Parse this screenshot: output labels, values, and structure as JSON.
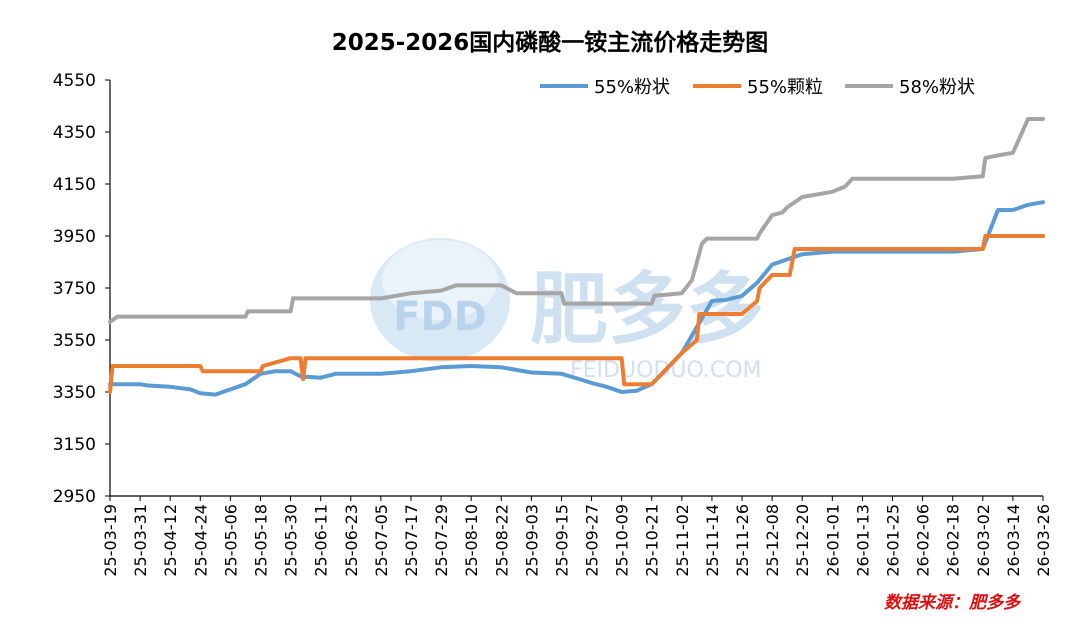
{
  "chart_data": {
    "type": "line",
    "title": "2025-2026国内磷酸一铵主流价格走势图",
    "source_note": "数据来源：肥多多",
    "watermark": {
      "brand": "FDD",
      "name": "肥多多",
      "site": "FEIDUODUO.COM"
    },
    "ylim": [
      2950,
      4550
    ],
    "yticks": [
      2950,
      3150,
      3350,
      3550,
      3750,
      3950,
      4150,
      4350,
      4550
    ],
    "xlabel": "",
    "ylabel": "",
    "grid": false,
    "legend_position": "top-right",
    "x_ticks": [
      "25-03-19",
      "25-03-31",
      "25-04-12",
      "25-04-24",
      "25-05-06",
      "25-05-18",
      "25-05-30",
      "25-06-11",
      "25-06-23",
      "25-07-05",
      "25-07-17",
      "25-07-29",
      "25-08-10",
      "25-08-22",
      "25-09-03",
      "25-09-15",
      "25-09-27",
      "25-10-09",
      "25-10-21",
      "25-11-02",
      "25-11-14",
      "25-11-26",
      "25-12-08",
      "25-12-20",
      "26-01-01",
      "26-01-13",
      "26-01-25",
      "26-02-06",
      "26-02-18",
      "26-03-02",
      "26-03-14",
      "26-03-26"
    ],
    "series": [
      {
        "name": "55%粉状",
        "color": "#5B9BD5",
        "points": [
          [
            "25-03-19",
            3380
          ],
          [
            "25-03-31",
            3380
          ],
          [
            "25-04-03",
            3375
          ],
          [
            "25-04-12",
            3370
          ],
          [
            "25-04-20",
            3360
          ],
          [
            "25-04-24",
            3345
          ],
          [
            "25-04-30",
            3340
          ],
          [
            "25-05-06",
            3360
          ],
          [
            "25-05-12",
            3380
          ],
          [
            "25-05-18",
            3420
          ],
          [
            "25-05-24",
            3430
          ],
          [
            "25-05-30",
            3430
          ],
          [
            "25-06-03",
            3410
          ],
          [
            "25-06-11",
            3405
          ],
          [
            "25-06-17",
            3420
          ],
          [
            "25-06-23",
            3420
          ],
          [
            "25-07-05",
            3420
          ],
          [
            "25-07-17",
            3430
          ],
          [
            "25-07-29",
            3445
          ],
          [
            "25-08-10",
            3450
          ],
          [
            "25-08-22",
            3445
          ],
          [
            "25-08-28",
            3435
          ],
          [
            "25-09-03",
            3425
          ],
          [
            "25-09-15",
            3420
          ],
          [
            "25-09-22",
            3400
          ],
          [
            "25-09-27",
            3385
          ],
          [
            "25-10-03",
            3370
          ],
          [
            "25-10-09",
            3350
          ],
          [
            "25-10-15",
            3355
          ],
          [
            "25-10-21",
            3380
          ],
          [
            "25-10-25",
            3420
          ],
          [
            "25-11-02",
            3500
          ],
          [
            "25-11-08",
            3600
          ],
          [
            "25-11-14",
            3700
          ],
          [
            "25-11-20",
            3705
          ],
          [
            "25-11-26",
            3720
          ],
          [
            "25-12-02",
            3770
          ],
          [
            "25-12-08",
            3840
          ],
          [
            "25-12-14",
            3860
          ],
          [
            "25-12-20",
            3880
          ],
          [
            "26-01-01",
            3890
          ],
          [
            "26-01-13",
            3890
          ],
          [
            "26-01-25",
            3890
          ],
          [
            "26-02-06",
            3890
          ],
          [
            "26-02-18",
            3890
          ],
          [
            "26-03-02",
            3900
          ],
          [
            "26-03-08",
            4050
          ],
          [
            "26-03-14",
            4050
          ],
          [
            "26-03-20",
            4070
          ],
          [
            "26-03-26",
            4080
          ]
        ]
      },
      {
        "name": "55%颗粒",
        "color": "#ED7D31",
        "points": [
          [
            "25-03-19",
            3350
          ],
          [
            "25-03-20",
            3450
          ],
          [
            "25-04-24",
            3450
          ],
          [
            "25-04-25",
            3430
          ],
          [
            "25-05-18",
            3430
          ],
          [
            "25-05-19",
            3450
          ],
          [
            "25-05-30",
            3480
          ],
          [
            "25-06-03",
            3480
          ],
          [
            "25-06-04",
            3400
          ],
          [
            "25-06-05",
            3480
          ],
          [
            "25-06-11",
            3480
          ],
          [
            "25-07-05",
            3480
          ],
          [
            "25-08-10",
            3480
          ],
          [
            "25-09-03",
            3480
          ],
          [
            "25-09-27",
            3480
          ],
          [
            "25-10-09",
            3480
          ],
          [
            "25-10-10",
            3380
          ],
          [
            "25-10-21",
            3380
          ],
          [
            "25-10-23",
            3400
          ],
          [
            "25-11-02",
            3500
          ],
          [
            "25-11-08",
            3550
          ],
          [
            "25-11-09",
            3650
          ],
          [
            "25-11-26",
            3650
          ],
          [
            "25-12-02",
            3700
          ],
          [
            "25-12-03",
            3750
          ],
          [
            "25-12-08",
            3800
          ],
          [
            "25-12-15",
            3800
          ],
          [
            "25-12-16",
            3850
          ],
          [
            "25-12-17",
            3900
          ],
          [
            "26-01-01",
            3900
          ],
          [
            "26-02-06",
            3900
          ],
          [
            "26-03-02",
            3900
          ],
          [
            "26-03-03",
            3950
          ],
          [
            "26-03-26",
            3950
          ]
        ]
      },
      {
        "name": "58%粉状",
        "color": "#A5A5A5",
        "points": [
          [
            "25-03-19",
            3620
          ],
          [
            "25-03-22",
            3640
          ],
          [
            "25-03-31",
            3640
          ],
          [
            "25-04-24",
            3640
          ],
          [
            "25-05-12",
            3640
          ],
          [
            "25-05-13",
            3660
          ],
          [
            "25-05-30",
            3660
          ],
          [
            "25-05-31",
            3710
          ],
          [
            "25-07-05",
            3710
          ],
          [
            "25-07-17",
            3730
          ],
          [
            "25-07-29",
            3740
          ],
          [
            "25-08-04",
            3760
          ],
          [
            "25-08-22",
            3760
          ],
          [
            "25-08-28",
            3730
          ],
          [
            "25-09-15",
            3730
          ],
          [
            "25-09-16",
            3690
          ],
          [
            "25-10-21",
            3690
          ],
          [
            "25-10-22",
            3720
          ],
          [
            "25-11-02",
            3730
          ],
          [
            "25-11-06",
            3780
          ],
          [
            "25-11-10",
            3920
          ],
          [
            "25-11-12",
            3940
          ],
          [
            "25-12-02",
            3940
          ],
          [
            "25-12-03",
            3960
          ],
          [
            "25-12-08",
            4030
          ],
          [
            "25-12-12",
            4040
          ],
          [
            "25-12-14",
            4060
          ],
          [
            "25-12-20",
            4100
          ],
          [
            "26-01-01",
            4120
          ],
          [
            "26-01-06",
            4140
          ],
          [
            "26-01-09",
            4170
          ],
          [
            "26-01-13",
            4170
          ],
          [
            "26-02-06",
            4170
          ],
          [
            "26-02-18",
            4170
          ],
          [
            "26-03-02",
            4180
          ],
          [
            "26-03-03",
            4250
          ],
          [
            "26-03-08",
            4260
          ],
          [
            "26-03-14",
            4270
          ],
          [
            "26-03-20",
            4400
          ],
          [
            "26-03-26",
            4400
          ]
        ]
      }
    ]
  }
}
